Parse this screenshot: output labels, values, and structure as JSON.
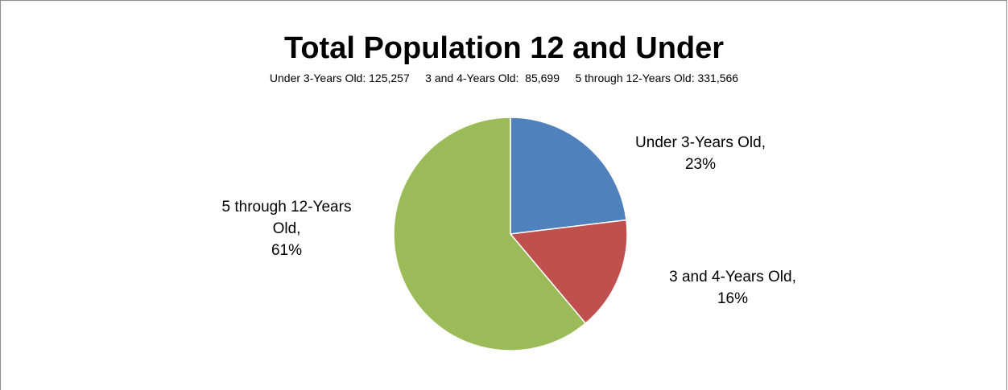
{
  "chart_data": {
    "type": "pie",
    "title": "Total Population 12 and Under",
    "subtitle": "Under 3-Years Old: 125,257     3 and 4-Years Old:  85,699     5 through 12-Years Old: 331,566",
    "categories": [
      "Under 3-Years Old",
      "3 and 4-Years Old",
      "5 through 12-Years Old"
    ],
    "values": [
      125257,
      85699,
      331566
    ],
    "percent_labels": [
      "23%",
      "16%",
      "61%"
    ],
    "label_lines": [
      [
        "Under 3-Years Old,",
        "23%"
      ],
      [
        "3 and 4-Years Old,",
        "16%"
      ],
      [
        "5 through 12-Years",
        "Old,",
        "61%"
      ]
    ],
    "colors": [
      "#4f81bd",
      "#c0504d",
      "#9bbb59"
    ],
    "legend": "none",
    "start_angle": "12 o'clock",
    "direction": "clockwise"
  }
}
